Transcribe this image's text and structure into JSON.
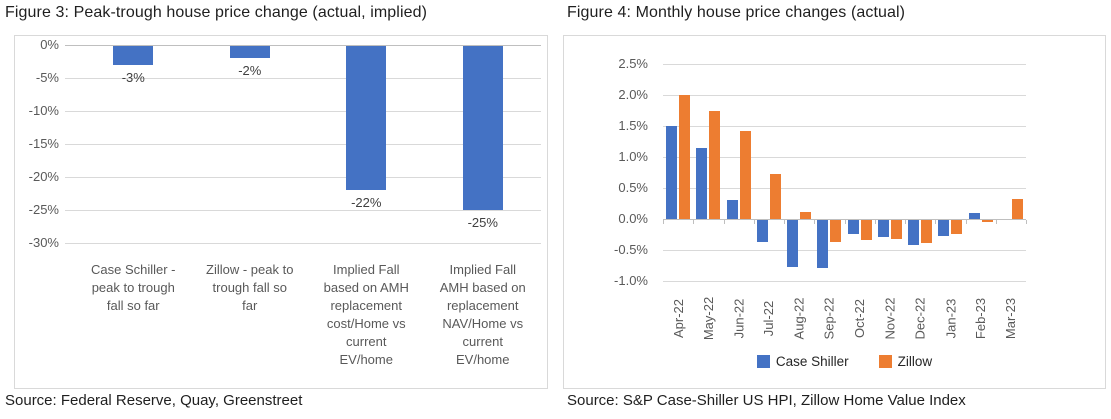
{
  "chart_data": [
    {
      "id": "figure3",
      "type": "bar",
      "title": "Figure 3: Peak-trough house price change (actual, implied)",
      "source": "Source: Federal Reserve, Quay, Greenstreet",
      "categories": [
        "Case Schiller -\npeak to trough\nfall so far",
        "Zillow - peak to\ntrough fall so\nfar",
        "Implied Fall\nbased on AMH\nreplacement\ncost/Home vs\ncurrent\nEV/home",
        "Implied Fall\nAMH based on\nreplacement\nNAV/Home vs\ncurrent\nEV/home"
      ],
      "values": [
        -3,
        -2,
        -22,
        -25
      ],
      "data_labels": [
        "-3%",
        "-2%",
        "-22%",
        "-25%"
      ],
      "ylabel": "",
      "xlabel": "",
      "ylim": [
        -30,
        0
      ],
      "yticks": [
        "0%",
        "-5%",
        "-10%",
        "-15%",
        "-20%",
        "-25%",
        "-30%"
      ],
      "grid": true,
      "bar_color": "#4472C4",
      "legend_position": "none"
    },
    {
      "id": "figure4",
      "type": "bar",
      "title": "Figure 4: Monthly house price changes (actual)",
      "source": "Source: S&P Case-Shiller US HPI, Zillow Home Value Index",
      "categories": [
        "Apr-22",
        "May-22",
        "Jun-22",
        "Jul-22",
        "Aug-22",
        "Sep-22",
        "Oct-22",
        "Nov-22",
        "Dec-22",
        "Jan-23",
        "Feb-23",
        "Mar-23"
      ],
      "series": [
        {
          "name": "Case Shiller",
          "color": "#4472C4",
          "values": [
            1.5,
            1.15,
            0.3,
            -0.36,
            -0.75,
            -0.78,
            -0.22,
            -0.28,
            -0.4,
            -0.25,
            0.1,
            null
          ]
        },
        {
          "name": "Zillow",
          "color": "#ED7D31",
          "values": [
            2.0,
            1.75,
            1.42,
            0.73,
            0.12,
            -0.35,
            -0.33,
            -0.3,
            -0.37,
            -0.22,
            -0.03,
            0.33
          ]
        }
      ],
      "ylabel": "",
      "xlabel": "",
      "ylim": [
        -1.0,
        2.5
      ],
      "yticks": [
        "2.5%",
        "2.0%",
        "1.5%",
        "1.0%",
        "0.5%",
        "0.0%",
        "-0.5%",
        "-1.0%"
      ],
      "grid": true,
      "legend_position": "bottom"
    }
  ]
}
